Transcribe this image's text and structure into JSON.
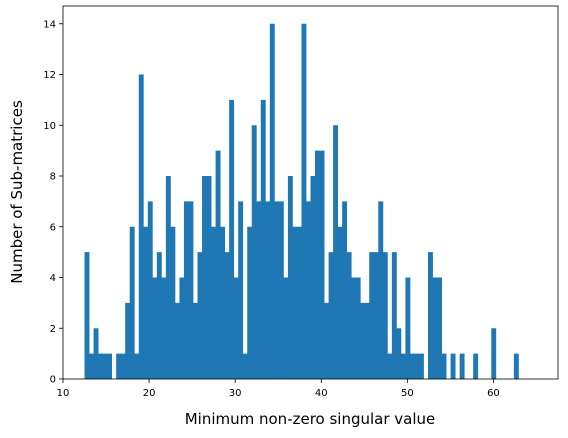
{
  "chart_data": {
    "type": "bar",
    "title": "",
    "xlabel": "Minimum non-zero singular value",
    "ylabel": "Number of Sub-matrices",
    "xlim": [
      10,
      67.5
    ],
    "ylim": [
      0,
      14.7
    ],
    "xticks": [
      10,
      20,
      30,
      40,
      50,
      60
    ],
    "yticks": [
      0,
      2,
      4,
      6,
      8,
      10,
      12,
      14
    ],
    "grid": false,
    "bar_color": "#1f77b4",
    "bin_start": 12.5,
    "bin_width": 0.525,
    "counts": [
      5,
      1,
      2,
      1,
      1,
      1,
      0,
      1,
      1,
      3,
      6,
      1,
      12,
      6,
      7,
      4,
      5,
      4,
      8,
      6,
      3,
      4,
      7,
      7,
      3,
      5,
      8,
      8,
      6,
      9,
      6,
      5,
      11,
      4,
      7,
      1,
      6,
      10,
      7,
      11,
      7,
      14,
      7,
      7,
      4,
      8,
      6,
      6,
      14,
      7,
      8,
      9,
      9,
      3,
      5,
      10,
      6,
      7,
      5,
      4,
      4,
      3,
      3,
      5,
      5,
      7,
      5,
      1,
      5,
      2,
      1,
      4,
      1,
      1,
      1,
      0,
      5,
      4,
      4,
      1,
      0,
      1,
      0,
      1,
      0,
      0,
      1,
      0,
      0,
      0,
      2,
      0,
      0,
      0,
      0,
      1
    ]
  }
}
